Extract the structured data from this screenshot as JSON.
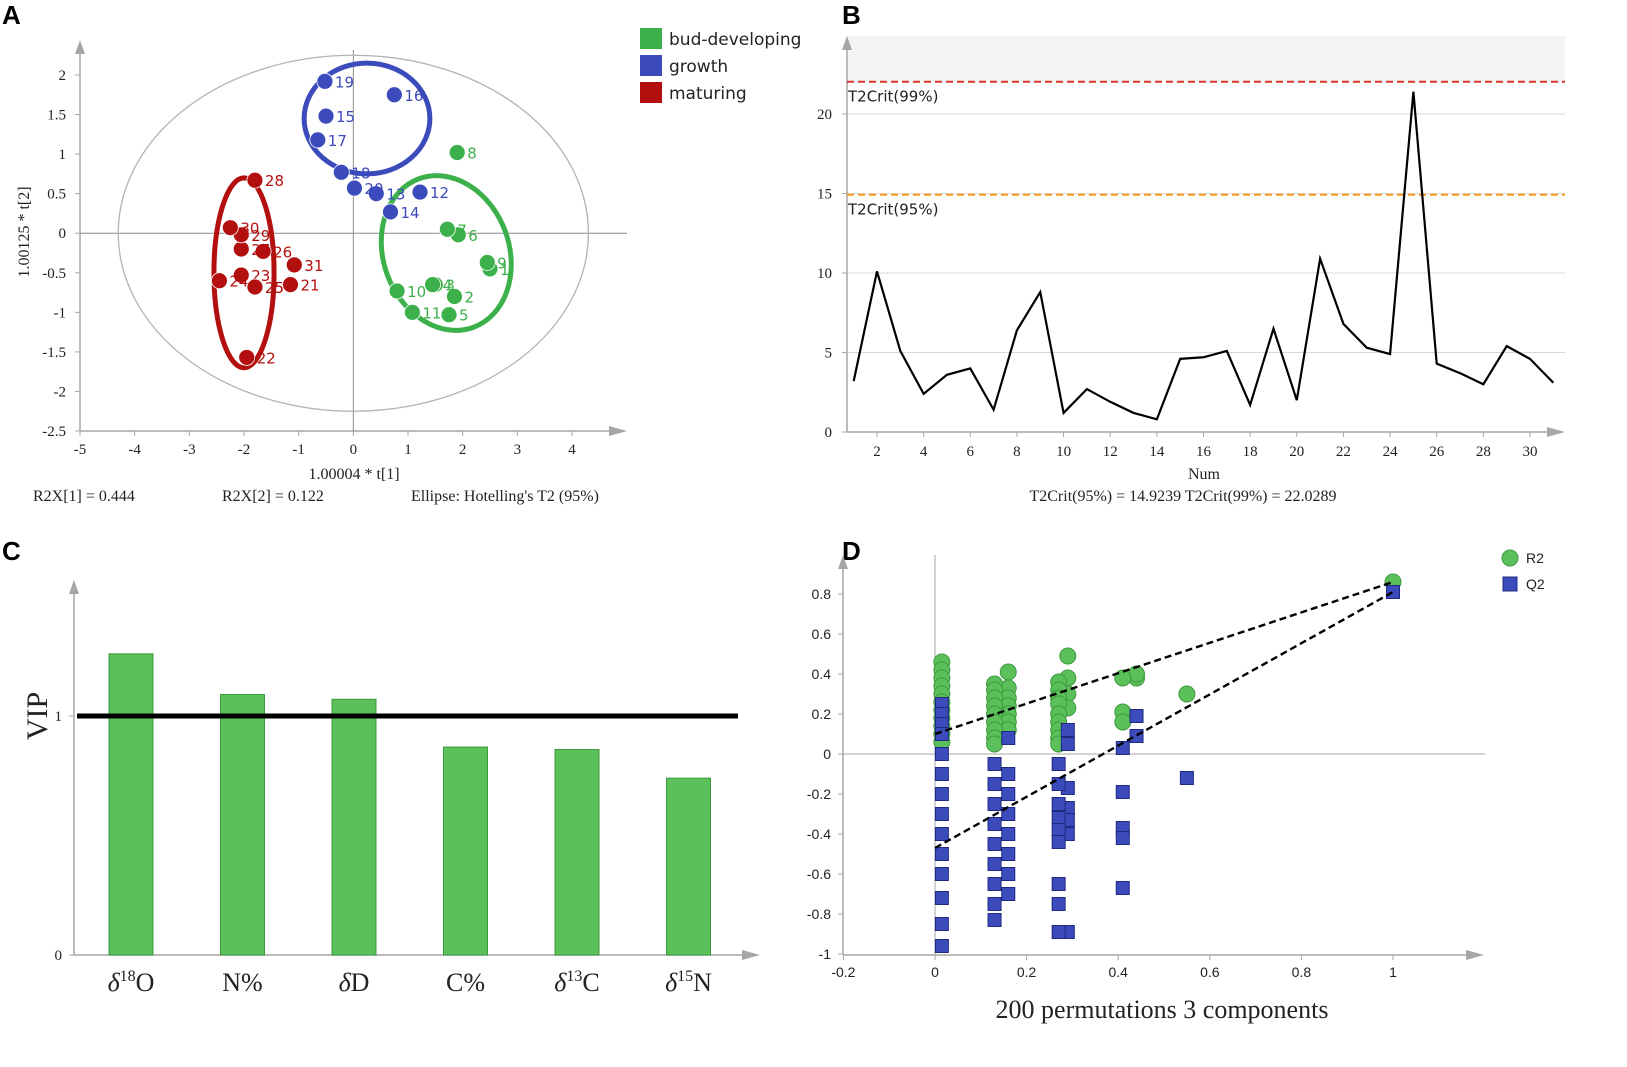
{
  "chart_data": [
    {
      "panel": "A",
      "type": "scatter",
      "xlabel": "1.00004 * t[1]",
      "ylabel": "1.00125 * t[2]",
      "xlim": [
        -5,
        5
      ],
      "ylim": [
        -2.5,
        2.5
      ],
      "xticks": [
        "-5",
        "-4",
        "-3",
        "-2",
        "-1",
        "0",
        "1",
        "2",
        "3",
        "4"
      ],
      "yticks": [
        "2",
        "1.5",
        "1",
        "0.5",
        "0",
        "-0.5",
        "-1",
        "-1.5",
        "-2",
        "-2.5"
      ],
      "captions": [
        "R2X[1] = 0.444",
        "R2X[2] = 0.122",
        "Ellipse: Hotelling's T2 (95%)"
      ],
      "legend": [
        {
          "label": "bud-developing",
          "color": "#3cb04a"
        },
        {
          "label": "growth",
          "color": "#3c4bbb"
        },
        {
          "label": "maturing",
          "color": "#b40f0f"
        }
      ],
      "ellipse_95": {
        "center": [
          0,
          0
        ],
        "radii": [
          4.3,
          2.25
        ]
      },
      "group_ellipses": [
        {
          "group": "growth",
          "center": [
            0.25,
            1.45
          ],
          "radii": [
            1.15,
            0.7
          ],
          "rotation_deg": 0
        },
        {
          "group": "bud-developing",
          "center": [
            1.7,
            -0.25
          ],
          "radii": [
            1.15,
            1.0
          ],
          "rotation_deg": -20
        },
        {
          "group": "maturing",
          "center": [
            -2.0,
            -0.5
          ],
          "radii": [
            0.55,
            1.2
          ],
          "rotation_deg": 0
        }
      ],
      "series": [
        {
          "name": "bud-developing",
          "color": "#3cb04a",
          "points": [
            {
              "label": "1",
              "x": 2.5,
              "y": -0.45
            },
            {
              "label": "2",
              "x": 1.85,
              "y": -0.8
            },
            {
              "label": "3",
              "x": 1.5,
              "y": -0.65
            },
            {
              "label": "4",
              "x": 1.45,
              "y": -0.65
            },
            {
              "label": "5",
              "x": 1.75,
              "y": -1.03
            },
            {
              "label": "6",
              "x": 1.92,
              "y": -0.02
            },
            {
              "label": "7",
              "x": 1.72,
              "y": 0.05
            },
            {
              "label": "8",
              "x": 1.9,
              "y": 1.02
            },
            {
              "label": "9",
              "x": 2.45,
              "y": -0.37
            },
            {
              "label": "10",
              "x": 0.8,
              "y": -0.73
            },
            {
              "label": "11",
              "x": 1.08,
              "y": -1.0
            }
          ]
        },
        {
          "name": "growth",
          "color": "#3c4bbb",
          "points": [
            {
              "label": "12",
              "x": 1.22,
              "y": 0.52
            },
            {
              "label": "13",
              "x": 0.42,
              "y": 0.5
            },
            {
              "label": "14",
              "x": 0.68,
              "y": 0.27
            },
            {
              "label": "15",
              "x": -0.5,
              "y": 1.48
            },
            {
              "label": "16",
              "x": 0.75,
              "y": 1.75
            },
            {
              "label": "17",
              "x": -0.65,
              "y": 1.18
            },
            {
              "label": "18",
              "x": -0.22,
              "y": 0.77
            },
            {
              "label": "19",
              "x": -0.52,
              "y": 1.92
            },
            {
              "label": "20",
              "x": 0.02,
              "y": 0.57
            }
          ]
        },
        {
          "name": "maturing",
          "color": "#b40f0f",
          "points": [
            {
              "label": "21",
              "x": -1.15,
              "y": -0.65
            },
            {
              "label": "22",
              "x": -1.95,
              "y": -1.57
            },
            {
              "label": "23",
              "x": -2.05,
              "y": -0.53
            },
            {
              "label": "24",
              "x": -2.45,
              "y": -0.6
            },
            {
              "label": "25",
              "x": -1.8,
              "y": -0.68
            },
            {
              "label": "26",
              "x": -1.65,
              "y": -0.23
            },
            {
              "label": "27",
              "x": -2.05,
              "y": -0.2
            },
            {
              "label": "28",
              "x": -1.8,
              "y": 0.67
            },
            {
              "label": "29",
              "x": -2.05,
              "y": -0.02
            },
            {
              "label": "30",
              "x": -2.25,
              "y": 0.07
            },
            {
              "label": "31",
              "x": -1.08,
              "y": -0.4
            }
          ]
        }
      ]
    },
    {
      "panel": "B",
      "type": "line",
      "xlabel": "Num",
      "caption": "T2Crit(95%) = 14.9239 T2Crit(99%) = 22.0289",
      "xlim": [
        1,
        32
      ],
      "ylim": [
        0,
        25
      ],
      "xticks": [
        "2",
        "4",
        "6",
        "8",
        "10",
        "12",
        "14",
        "16",
        "18",
        "20",
        "22",
        "24",
        "26",
        "28",
        "30"
      ],
      "yticks": [
        "0",
        "5",
        "10",
        "15",
        "20"
      ],
      "thresholds": [
        {
          "label": "T2Crit(95%)",
          "value": 14.9239,
          "color": "#f59a1d"
        },
        {
          "label": "T2Crit(99%)",
          "value": 22.0289,
          "color": "#e0302b"
        }
      ],
      "x": [
        1,
        2,
        3,
        4,
        5,
        6,
        7,
        8,
        9,
        10,
        11,
        12,
        13,
        14,
        15,
        16,
        17,
        18,
        19,
        20,
        21,
        22,
        23,
        24,
        25,
        26,
        27,
        28,
        29,
        30,
        31
      ],
      "y": [
        3.2,
        10.1,
        5.1,
        2.4,
        3.6,
        4.0,
        1.4,
        6.4,
        8.8,
        1.2,
        2.7,
        1.9,
        1.2,
        0.8,
        4.6,
        4.7,
        5.1,
        1.7,
        6.5,
        2.0,
        10.9,
        6.8,
        5.3,
        4.9,
        21.4,
        4.3,
        3.7,
        3.0,
        5.4,
        4.6,
        3.1
      ]
    },
    {
      "panel": "C",
      "type": "bar",
      "ylabel": "VIP",
      "ylim": [
        0,
        1.5
      ],
      "yticks": [
        "0",
        "1"
      ],
      "threshold": 1,
      "categories": [
        "δ18O",
        "N%",
        "δD",
        "C%",
        "δ13C",
        "δ15N"
      ],
      "category_labels": [
        {
          "prefix": "δ",
          "sup": "18",
          "base": "O"
        },
        {
          "prefix": "",
          "sup": "",
          "base": "N%"
        },
        {
          "prefix": "δ",
          "sup": "",
          "base": "D"
        },
        {
          "prefix": "",
          "sup": "",
          "base": "C%"
        },
        {
          "prefix": "δ",
          "sup": "13",
          "base": "C"
        },
        {
          "prefix": "δ",
          "sup": "15",
          "base": "N"
        }
      ],
      "values": [
        1.26,
        1.09,
        1.07,
        0.87,
        0.86,
        0.74
      ],
      "color": "#5bbf5a"
    },
    {
      "panel": "D",
      "type": "scatter",
      "xlabel": "200 permutations 3 components",
      "xlim": [
        -0.2,
        1.2
      ],
      "ylim": [
        -1,
        1
      ],
      "xticks": [
        "-0.2",
        "0",
        "0.2",
        "0.4",
        "0.6",
        "0.8",
        "1"
      ],
      "yticks": [
        "0.8",
        "0.6",
        "0.4",
        "0.2",
        "0",
        "-0.2",
        "-0.4",
        "-0.6",
        "-0.8",
        "-1"
      ],
      "legend": [
        {
          "label": "R2",
          "color": "#5bbf5a",
          "marker": "circle"
        },
        {
          "label": "Q2",
          "color": "#3c4bbb",
          "marker": "square"
        }
      ],
      "regression_lines": [
        {
          "name": "R2",
          "from": [
            0,
            0.1
          ],
          "to": [
            1,
            0.86
          ]
        },
        {
          "name": "Q2",
          "from": [
            0,
            -0.47
          ],
          "to": [
            1,
            0.81
          ]
        }
      ],
      "series": [
        {
          "name": "R2",
          "points": [
            [
              1.0,
              0.86
            ],
            [
              0.55,
              0.3
            ],
            [
              0.44,
              0.38
            ],
            [
              0.44,
              0.4
            ],
            [
              0.41,
              0.38
            ],
            [
              0.41,
              0.21
            ],
            [
              0.41,
              0.16
            ],
            [
              0.29,
              0.49
            ],
            [
              0.29,
              0.38
            ],
            [
              0.29,
              0.3
            ],
            [
              0.29,
              0.23
            ],
            [
              0.27,
              0.36
            ],
            [
              0.27,
              0.32
            ],
            [
              0.27,
              0.28
            ],
            [
              0.27,
              0.25
            ],
            [
              0.27,
              0.2
            ],
            [
              0.27,
              0.16
            ],
            [
              0.27,
              0.12
            ],
            [
              0.27,
              0.08
            ],
            [
              0.27,
              0.05
            ],
            [
              0.16,
              0.41
            ],
            [
              0.16,
              0.33
            ],
            [
              0.16,
              0.28
            ],
            [
              0.16,
              0.24
            ],
            [
              0.16,
              0.2
            ],
            [
              0.16,
              0.16
            ],
            [
              0.16,
              0.12
            ],
            [
              0.13,
              0.35
            ],
            [
              0.13,
              0.32
            ],
            [
              0.13,
              0.28
            ],
            [
              0.13,
              0.24
            ],
            [
              0.13,
              0.2
            ],
            [
              0.13,
              0.16
            ],
            [
              0.13,
              0.12
            ],
            [
              0.13,
              0.08
            ],
            [
              0.13,
              0.05
            ],
            [
              0.015,
              0.46
            ],
            [
              0.015,
              0.42
            ],
            [
              0.015,
              0.38
            ],
            [
              0.015,
              0.34
            ],
            [
              0.015,
              0.3
            ],
            [
              0.015,
              0.26
            ],
            [
              0.015,
              0.22
            ],
            [
              0.015,
              0.18
            ],
            [
              0.015,
              0.14
            ],
            [
              0.015,
              0.1
            ],
            [
              0.015,
              0.06
            ]
          ]
        },
        {
          "name": "Q2",
          "points": [
            [
              1.0,
              0.81
            ],
            [
              0.55,
              -0.12
            ],
            [
              0.44,
              0.19
            ],
            [
              0.44,
              0.09
            ],
            [
              0.41,
              0.03
            ],
            [
              0.41,
              -0.19
            ],
            [
              0.41,
              -0.37
            ],
            [
              0.41,
              -0.42
            ],
            [
              0.41,
              -0.67
            ],
            [
              0.29,
              0.12
            ],
            [
              0.29,
              0.05
            ],
            [
              0.29,
              -0.17
            ],
            [
              0.29,
              -0.27
            ],
            [
              0.29,
              -0.33
            ],
            [
              0.29,
              -0.4
            ],
            [
              0.29,
              -0.89
            ],
            [
              0.27,
              -0.05
            ],
            [
              0.27,
              -0.15
            ],
            [
              0.27,
              -0.25
            ],
            [
              0.27,
              -0.32
            ],
            [
              0.27,
              -0.38
            ],
            [
              0.27,
              -0.44
            ],
            [
              0.27,
              -0.65
            ],
            [
              0.27,
              -0.75
            ],
            [
              0.27,
              -0.89
            ],
            [
              0.16,
              0.08
            ],
            [
              0.16,
              -0.1
            ],
            [
              0.16,
              -0.2
            ],
            [
              0.16,
              -0.3
            ],
            [
              0.16,
              -0.4
            ],
            [
              0.16,
              -0.5
            ],
            [
              0.16,
              -0.6
            ],
            [
              0.16,
              -0.7
            ],
            [
              0.13,
              -0.05
            ],
            [
              0.13,
              -0.15
            ],
            [
              0.13,
              -0.25
            ],
            [
              0.13,
              -0.35
            ],
            [
              0.13,
              -0.45
            ],
            [
              0.13,
              -0.55
            ],
            [
              0.13,
              -0.65
            ],
            [
              0.13,
              -0.75
            ],
            [
              0.13,
              -0.83
            ],
            [
              0.015,
              0.25
            ],
            [
              0.015,
              0.2
            ],
            [
              0.015,
              0.15
            ],
            [
              0.015,
              0.1
            ],
            [
              0.015,
              0.0
            ],
            [
              0.015,
              -0.1
            ],
            [
              0.015,
              -0.2
            ],
            [
              0.015,
              -0.3
            ],
            [
              0.015,
              -0.4
            ],
            [
              0.015,
              -0.5
            ],
            [
              0.015,
              -0.6
            ],
            [
              0.015,
              -0.72
            ],
            [
              0.015,
              -0.85
            ],
            [
              0.015,
              -0.96
            ]
          ]
        }
      ]
    }
  ]
}
